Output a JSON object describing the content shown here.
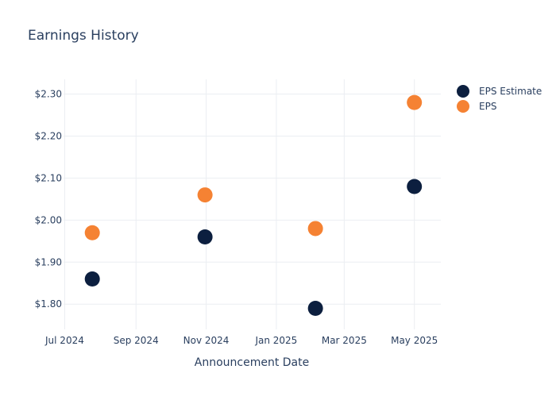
{
  "chart_data": {
    "type": "scatter",
    "title": "Earnings History",
    "xlabel": "Announcement Date",
    "ylabel": "",
    "x_ticks": [
      "Jul 2024",
      "Sep 2024",
      "Nov 2024",
      "Jan 2025",
      "Mar 2025",
      "May 2025"
    ],
    "y_ticks": [
      "$1.80",
      "$1.90",
      "$2.00",
      "$2.10",
      "$2.20",
      "$2.30"
    ],
    "xlim": [
      "2024-06-30",
      "2025-05-24"
    ],
    "ylim": [
      1.74,
      2.335
    ],
    "grid": true,
    "legend_position": "top-right",
    "series": [
      {
        "name": "EPS Estimate",
        "color": "#0c1f3f",
        "points": [
          {
            "x": "2024-07-25",
            "y": 1.86
          },
          {
            "x": "2024-10-31",
            "y": 1.96
          },
          {
            "x": "2025-02-04",
            "y": 1.79
          },
          {
            "x": "2025-05-01",
            "y": 2.08
          }
        ]
      },
      {
        "name": "EPS",
        "color": "#f58233",
        "points": [
          {
            "x": "2024-07-25",
            "y": 1.97
          },
          {
            "x": "2024-10-31",
            "y": 2.06
          },
          {
            "x": "2025-02-04",
            "y": 1.98
          },
          {
            "x": "2025-05-01",
            "y": 2.28
          }
        ]
      }
    ]
  }
}
